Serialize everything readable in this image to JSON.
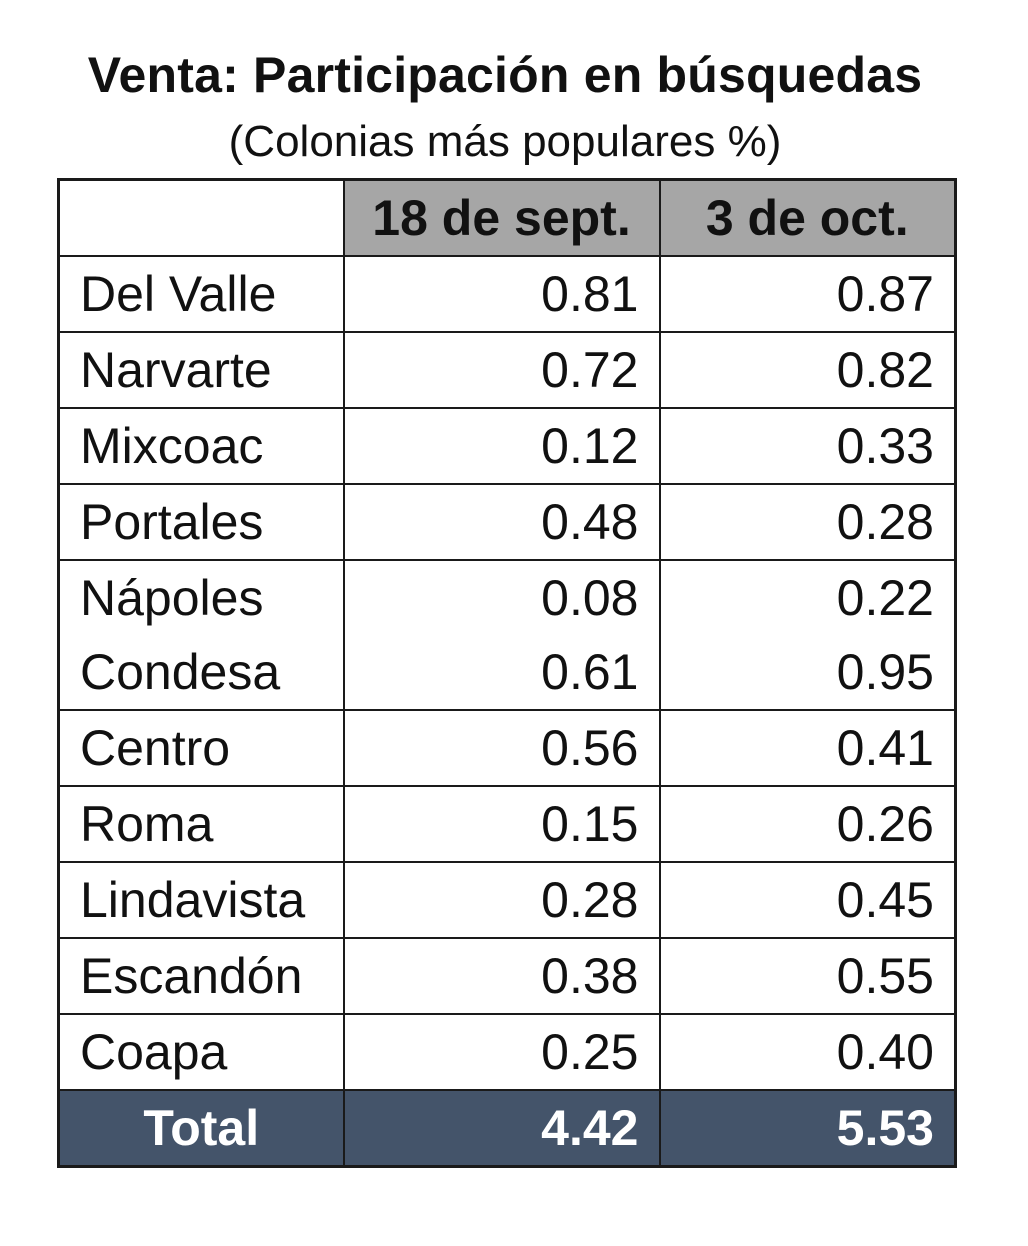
{
  "title": "Venta: Participación en búsquedas",
  "subtitle": "(Colonias más populares %)",
  "columns": [
    "",
    "18 de sept.",
    "3 de oct."
  ],
  "colors": {
    "header_fill": "#a6a6a6",
    "total_fill": "#44546a",
    "total_text": "#ffffff",
    "border": "#1a1a1a"
  },
  "rows": [
    {
      "name": "Del Valle",
      "v1": "0.81",
      "v2": "0.87"
    },
    {
      "name": "Narvarte",
      "v1": "0.72",
      "v2": "0.82"
    },
    {
      "name": "Mixcoac",
      "v1": "0.12",
      "v2": "0.33"
    },
    {
      "name": "Portales",
      "v1": "0.48",
      "v2": "0.28"
    },
    {
      "name": "Nápoles",
      "v1": "0.08",
      "v2": "0.22"
    },
    {
      "name": "Condesa",
      "v1": "0.61",
      "v2": "0.95"
    },
    {
      "name": "Centro",
      "v1": "0.56",
      "v2": "0.41"
    },
    {
      "name": "Roma",
      "v1": "0.15",
      "v2": "0.26"
    },
    {
      "name": "Lindavista",
      "v1": "0.28",
      "v2": "0.45"
    },
    {
      "name": "Escandón",
      "v1": "0.38",
      "v2": "0.55"
    },
    {
      "name": "Coapa",
      "v1": "0.25",
      "v2": "0.40"
    }
  ],
  "total": {
    "name": "Total",
    "v1": "4.42",
    "v2": "5.53"
  },
  "chart_data": {
    "type": "table",
    "title": "Venta: Participación en búsquedas",
    "subtitle": "(Colonias más populares %)",
    "columns": [
      "18 de sept.",
      "3 de oct."
    ],
    "categories": [
      "Del Valle",
      "Narvarte",
      "Mixcoac",
      "Portales",
      "Nápoles",
      "Condesa",
      "Centro",
      "Roma",
      "Lindavista",
      "Escandón",
      "Coapa"
    ],
    "series": [
      {
        "name": "18 de sept.",
        "values": [
          0.81,
          0.72,
          0.12,
          0.48,
          0.08,
          0.61,
          0.56,
          0.15,
          0.28,
          0.38,
          0.25
        ]
      },
      {
        "name": "3 de oct.",
        "values": [
          0.87,
          0.82,
          0.33,
          0.28,
          0.22,
          0.95,
          0.41,
          0.26,
          0.45,
          0.55,
          0.4
        ]
      }
    ],
    "totals": {
      "18 de sept.": 4.42,
      "3 de oct.": 5.53
    }
  }
}
